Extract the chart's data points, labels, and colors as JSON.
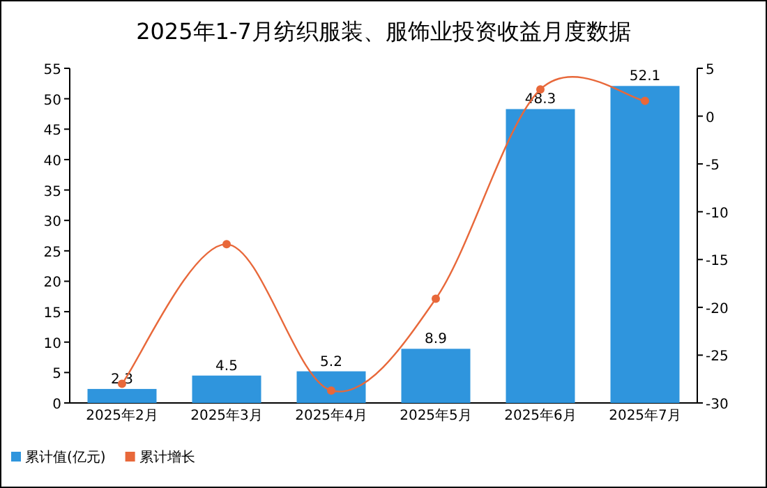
{
  "chart_data": {
    "type": "bar",
    "title": "2025年1-7月纺织服装、服饰业投资收益月度数据",
    "categories": [
      "2025年2月",
      "2025年3月",
      "2025年4月",
      "2025年5月",
      "2025年6月",
      "2025年7月"
    ],
    "series": [
      {
        "name": "累计值(亿元)",
        "color": "#2f95dd",
        "values": [
          2.3,
          4.5,
          5.2,
          8.9,
          48.3,
          52.1
        ],
        "data_labels": true
      },
      {
        "name": "累计增长",
        "type": "line",
        "axis": "y2",
        "color": "#e8683a",
        "marker": "circle",
        "values": [
          -28.0,
          -13.4,
          -28.7,
          -19.1,
          2.8,
          1.6
        ]
      }
    ],
    "ylim": [
      0,
      55
    ],
    "yticks": [
      0,
      5,
      10,
      15,
      20,
      25,
      30,
      35,
      40,
      45,
      50,
      55
    ],
    "y2lim": [
      -30,
      5
    ],
    "y2ticks": [
      -30,
      -25,
      -20,
      -15,
      -10,
      -5,
      0,
      5
    ],
    "legend": "bottom left",
    "grid": false
  }
}
